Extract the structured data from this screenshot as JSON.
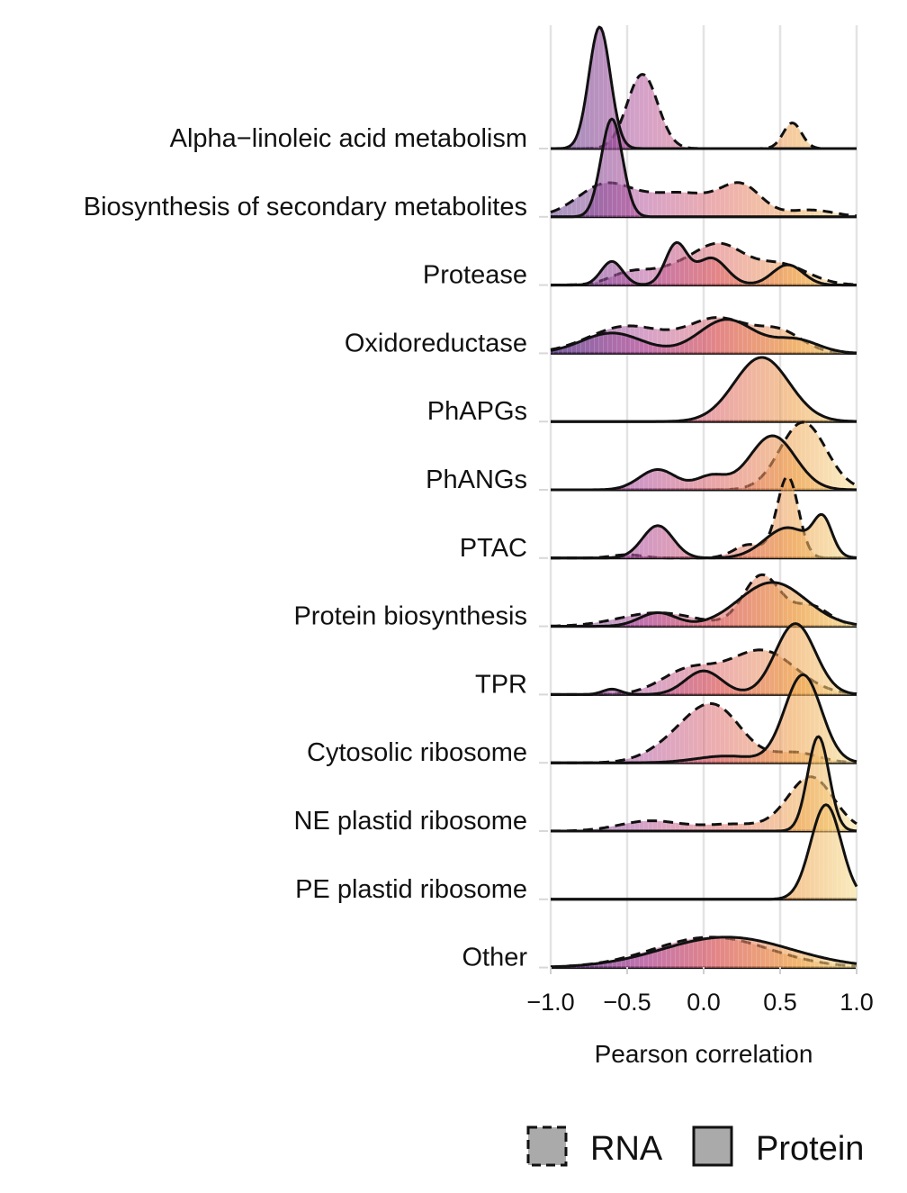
{
  "chart_data": {
    "type": "area",
    "subtype": "ridgeline-density",
    "xlabel": "Pearson correlation",
    "ylabel": "",
    "xlim": [
      -1.0,
      1.0
    ],
    "x_ticks": [
      "−1.0",
      "−0.5",
      "0.0",
      "0.5",
      "1.0"
    ],
    "x_tick_values": [
      -1.0,
      -0.5,
      0.0,
      0.5,
      1.0
    ],
    "grid": "vertical major gridlines on",
    "fill_gradient": "x-value: purple at -1.0 through pink to yellow at 1.0",
    "gradient_colors": [
      "#5d3c8c",
      "#b4549c",
      "#de6c6c",
      "#eea450",
      "#f6e094"
    ],
    "legend": {
      "placement": "bottom",
      "entries": [
        {
          "label": "RNA",
          "line": "dashed"
        },
        {
          "label": "Protein",
          "line": "solid"
        }
      ]
    },
    "categories": [
      "Alpha−linoleic acid metabolism",
      "Biosynthesis of secondary metabolites",
      "Protease",
      "Oxidoreductase",
      "PhAPGs",
      "PhANGs",
      "PTAC",
      "Protein biosynthesis",
      "TPR",
      "Cytosolic ribosome",
      "NE plastid ribosome",
      "PE plastid ribosome",
      "Other"
    ],
    "series": [
      {
        "name": "RNA",
        "line": "dashed",
        "peaks": [
          [
            [
              -0.4,
              1.1,
              0.1
            ],
            [
              0.58,
              0.38,
              0.06
            ]
          ],
          [
            [
              -0.65,
              0.45,
              0.18
            ],
            [
              -0.15,
              0.35,
              0.25
            ],
            [
              0.25,
              0.4,
              0.13
            ],
            [
              0.7,
              0.1,
              0.15
            ]
          ],
          [
            [
              -0.5,
              0.12,
              0.12
            ],
            [
              -0.1,
              0.3,
              0.25
            ],
            [
              0.12,
              0.38,
              0.15
            ],
            [
              0.5,
              0.3,
              0.18
            ]
          ],
          [
            [
              -0.5,
              0.4,
              0.25
            ],
            [
              0.1,
              0.5,
              0.2
            ],
            [
              0.5,
              0.3,
              0.15
            ]
          ],
          null,
          [
            [
              0.65,
              1.0,
              0.15
            ]
          ],
          [
            [
              -0.5,
              0.05,
              0.1
            ],
            [
              0.3,
              0.2,
              0.1
            ],
            [
              0.55,
              1.2,
              0.07
            ]
          ],
          [
            [
              -0.3,
              0.2,
              0.25
            ],
            [
              0.38,
              0.75,
              0.12
            ],
            [
              0.7,
              0.3,
              0.12
            ]
          ],
          [
            [
              -0.1,
              0.35,
              0.18
            ],
            [
              0.38,
              0.65,
              0.22
            ]
          ],
          [
            [
              -0.1,
              0.4,
              0.2
            ],
            [
              0.1,
              0.6,
              0.17
            ],
            [
              0.6,
              0.15,
              0.15
            ]
          ],
          [
            [
              -0.35,
              0.15,
              0.2
            ],
            [
              0.2,
              0.1,
              0.2
            ],
            [
              0.7,
              0.8,
              0.15
            ]
          ],
          null,
          [
            [
              0.05,
              0.45,
              0.38
            ]
          ]
        ]
      },
      {
        "name": "Protein",
        "line": "solid",
        "peaks": [
          [
            [
              -0.68,
              1.8,
              0.07
            ]
          ],
          [
            [
              -0.6,
              1.45,
              0.07
            ]
          ],
          [
            [
              -0.6,
              0.35,
              0.07
            ],
            [
              -0.18,
              0.6,
              0.07
            ],
            [
              0.05,
              0.4,
              0.1
            ],
            [
              0.55,
              0.3,
              0.1
            ]
          ],
          [
            [
              -0.6,
              0.3,
              0.2
            ],
            [
              0.15,
              0.5,
              0.18
            ],
            [
              0.6,
              0.2,
              0.15
            ]
          ],
          [
            [
              0.38,
              0.95,
              0.18
            ]
          ],
          [
            [
              -0.3,
              0.3,
              0.12
            ],
            [
              0.05,
              0.2,
              0.1
            ],
            [
              0.45,
              0.8,
              0.15
            ]
          ],
          [
            [
              -0.3,
              0.48,
              0.1
            ],
            [
              0.55,
              0.45,
              0.15
            ],
            [
              0.78,
              0.5,
              0.06
            ]
          ],
          [
            [
              -0.3,
              0.2,
              0.12
            ],
            [
              0.45,
              0.65,
              0.22
            ]
          ],
          [
            [
              -0.6,
              0.08,
              0.06
            ],
            [
              0.0,
              0.35,
              0.12
            ],
            [
              0.6,
              1.05,
              0.13
            ]
          ],
          [
            [
              0.15,
              0.1,
              0.2
            ],
            [
              0.65,
              1.3,
              0.12
            ]
          ],
          [
            [
              0.75,
              1.4,
              0.07
            ]
          ],
          [
            [
              0.8,
              1.4,
              0.1
            ]
          ],
          [
            [
              0.15,
              0.45,
              0.42
            ]
          ]
        ]
      }
    ]
  }
}
